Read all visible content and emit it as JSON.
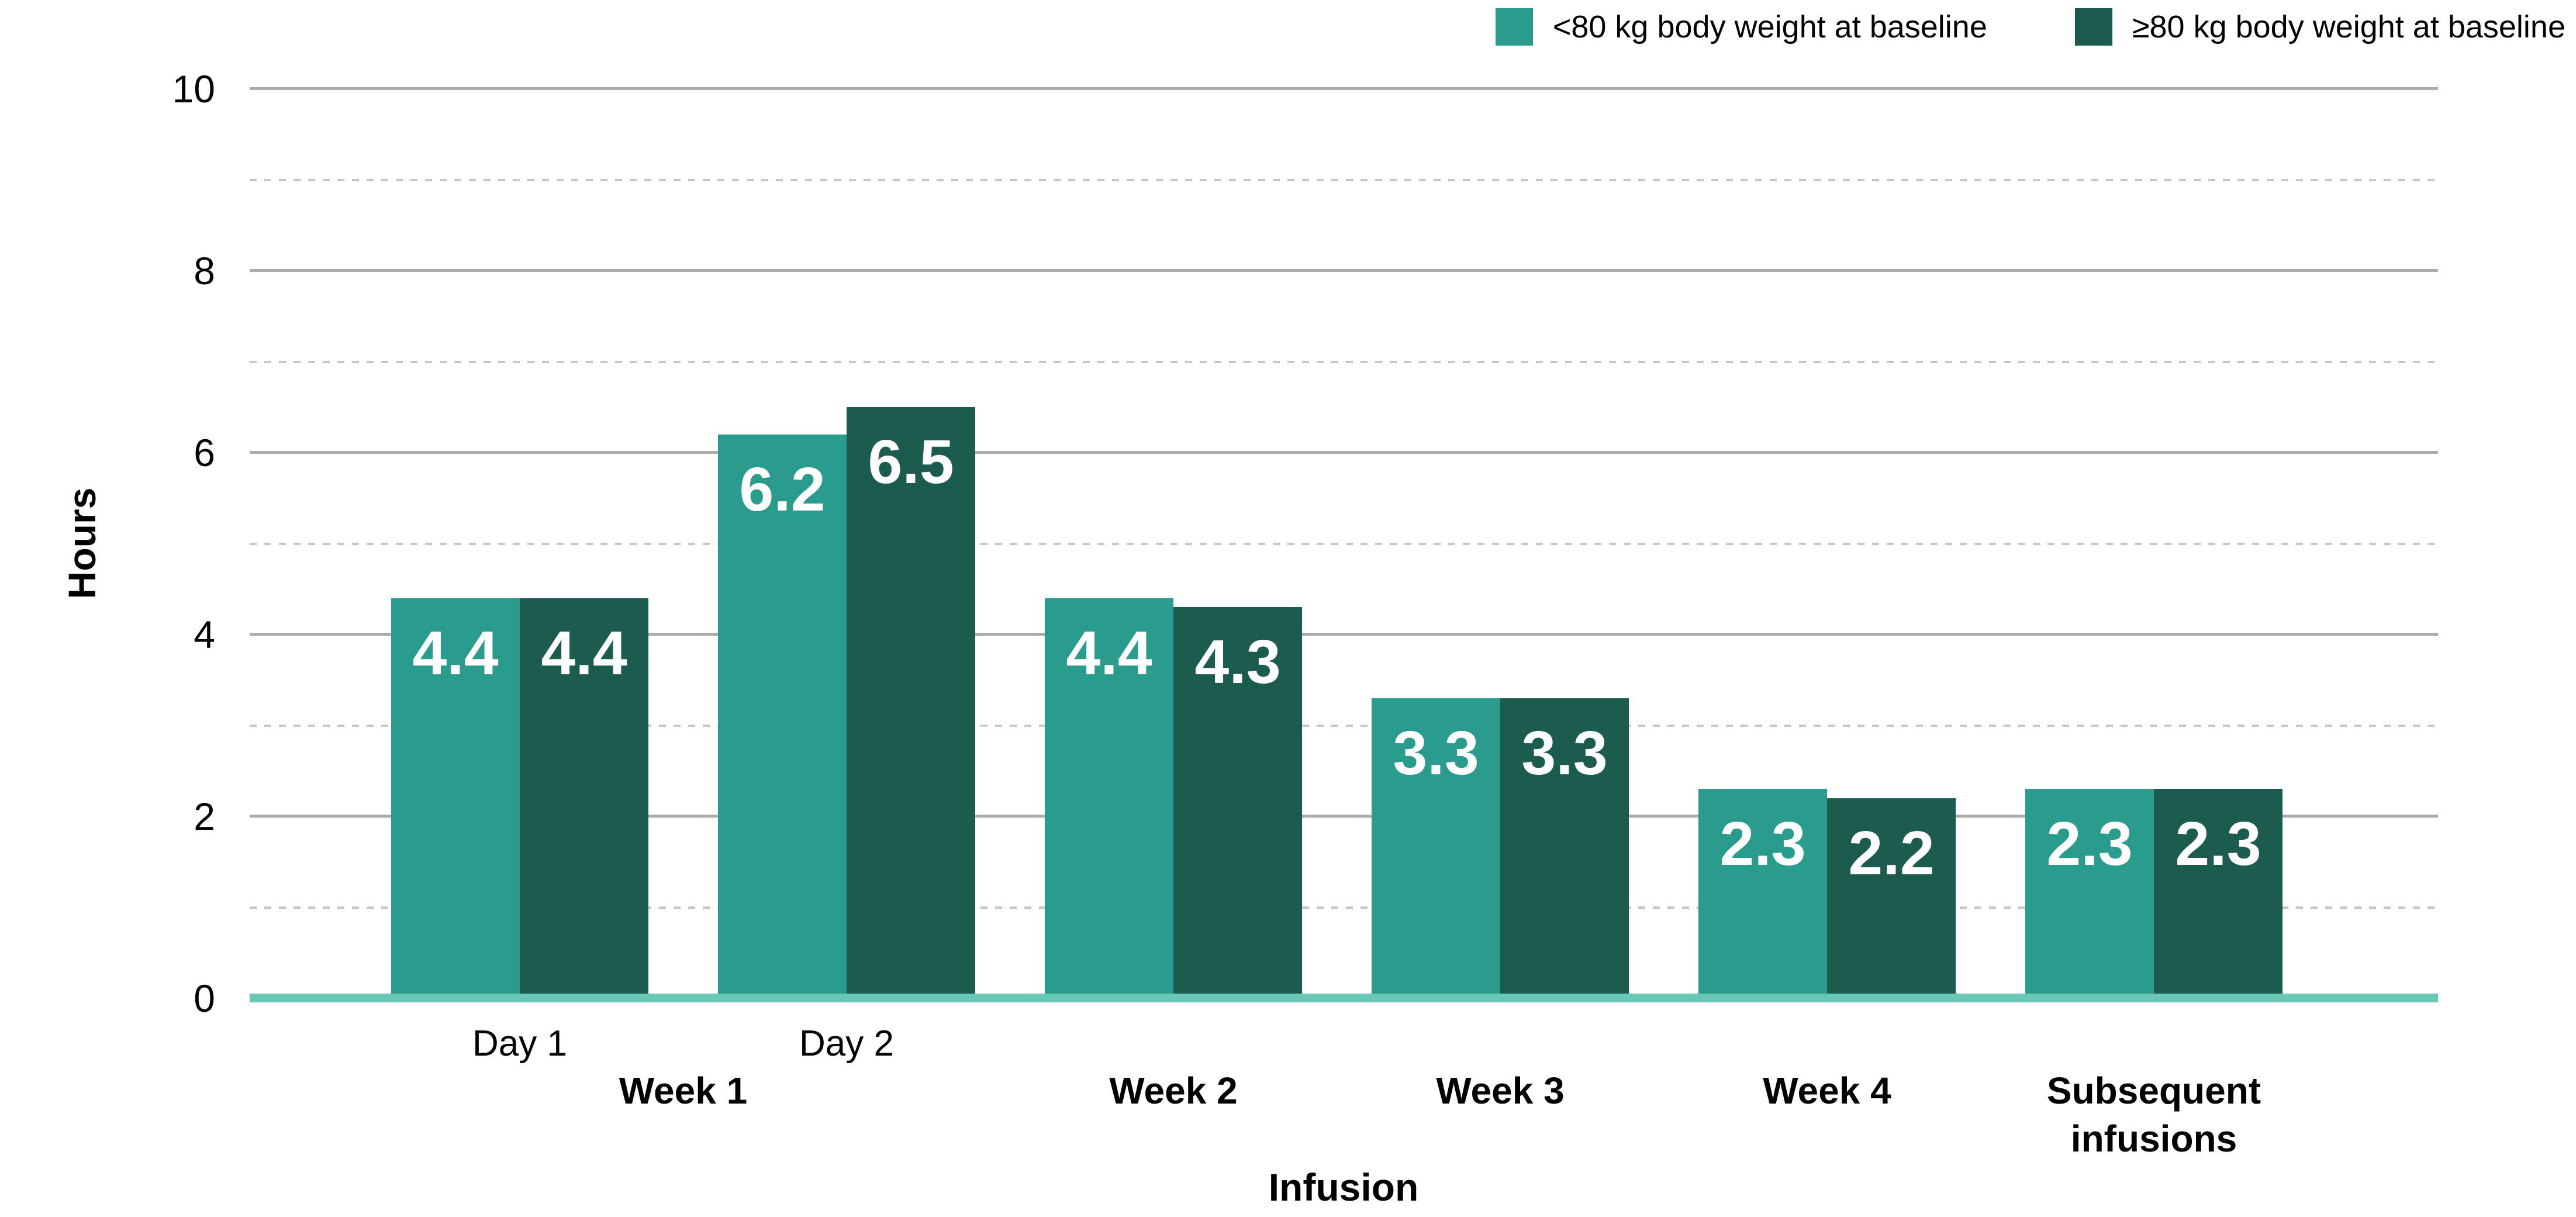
{
  "chart_data": {
    "type": "bar",
    "title": "",
    "categories": [
      "Day 1",
      "Day 2",
      "Week 2",
      "Week 3",
      "Week 4",
      "Subsequent infusions"
    ],
    "x_axis": {
      "title": "Infusion",
      "tier1_labels": [
        {
          "label": "Day 1",
          "group": 0
        },
        {
          "label": "Day 2",
          "group": 1
        }
      ],
      "tier2_labels": [
        {
          "label": "Week 1",
          "groups": [
            0,
            1
          ]
        },
        {
          "label": "Week 2",
          "groups": [
            2,
            2
          ]
        },
        {
          "label": "Week 3",
          "groups": [
            3,
            3
          ]
        },
        {
          "label": "Week 4",
          "groups": [
            4,
            4
          ]
        },
        {
          "label": "Subsequent\ninfusions",
          "groups": [
            5,
            5
          ]
        }
      ]
    },
    "series": [
      {
        "name": "<80 kg body weight at baseline",
        "color": "#2A9C8D",
        "values": [
          4.4,
          6.2,
          4.4,
          3.3,
          2.3,
          2.3
        ]
      },
      {
        "name": "≥80 kg body weight at baseline",
        "color": "#1C5C4F",
        "values": [
          4.4,
          6.5,
          4.3,
          3.3,
          2.2,
          2.3
        ]
      }
    ],
    "value_label_format": "one_decimal",
    "xlabel": "Infusion",
    "ylabel": "Hours",
    "ylim": [
      0,
      10
    ],
    "yticks": [
      0,
      2,
      4,
      6,
      8,
      10
    ],
    "minor_gridlines": [
      1,
      3,
      5,
      7,
      9
    ],
    "grid": true,
    "legend_position": "top-right",
    "style": {
      "value_label_color": "#FFFFFF",
      "baseline_color": "#68C8B5",
      "grid_major_color": "#ABABAB",
      "grid_minor_color": "#C6C6C6",
      "text_color": "#000000",
      "background": "#FFFFFF"
    }
  }
}
